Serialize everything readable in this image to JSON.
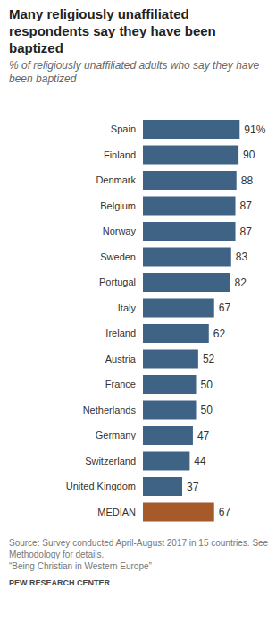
{
  "chart_data": {
    "type": "bar",
    "orientation": "horizontal",
    "title": "Many religiously unaffiliated respondents say they have been baptized",
    "subtitle": "% of religiously unaffiliated adults who say they have been baptized",
    "categories": [
      "Spain",
      "Finland",
      "Denmark",
      "Belgium",
      "Norway",
      "Sweden",
      "Portugal",
      "Italy",
      "Ireland",
      "Austria",
      "France",
      "Netherlands",
      "Germany",
      "Switzerland",
      "United Kingdom",
      "MEDIAN"
    ],
    "values": [
      91,
      90,
      88,
      87,
      87,
      83,
      82,
      67,
      62,
      52,
      50,
      50,
      47,
      44,
      37,
      67
    ],
    "value_labels": [
      "91%",
      "90",
      "88",
      "87",
      "87",
      "83",
      "82",
      "67",
      "62",
      "52",
      "50",
      "50",
      "47",
      "44",
      "37",
      "67"
    ],
    "colors": [
      "#3f6384",
      "#3f6384",
      "#3f6384",
      "#3f6384",
      "#3f6384",
      "#3f6384",
      "#3f6384",
      "#3f6384",
      "#3f6384",
      "#3f6384",
      "#3f6384",
      "#3f6384",
      "#3f6384",
      "#3f6384",
      "#3f6384",
      "#a65a2a"
    ],
    "xlim": [
      0,
      100
    ],
    "data_labels": true,
    "tick_labels": "y",
    "notes": [
      "Source: Survey conducted April-August 2017 in 15 countries. See Methodology for details.",
      "“Being Christian in Western Europe”"
    ],
    "credit": "PEW RESEARCH CENTER"
  }
}
